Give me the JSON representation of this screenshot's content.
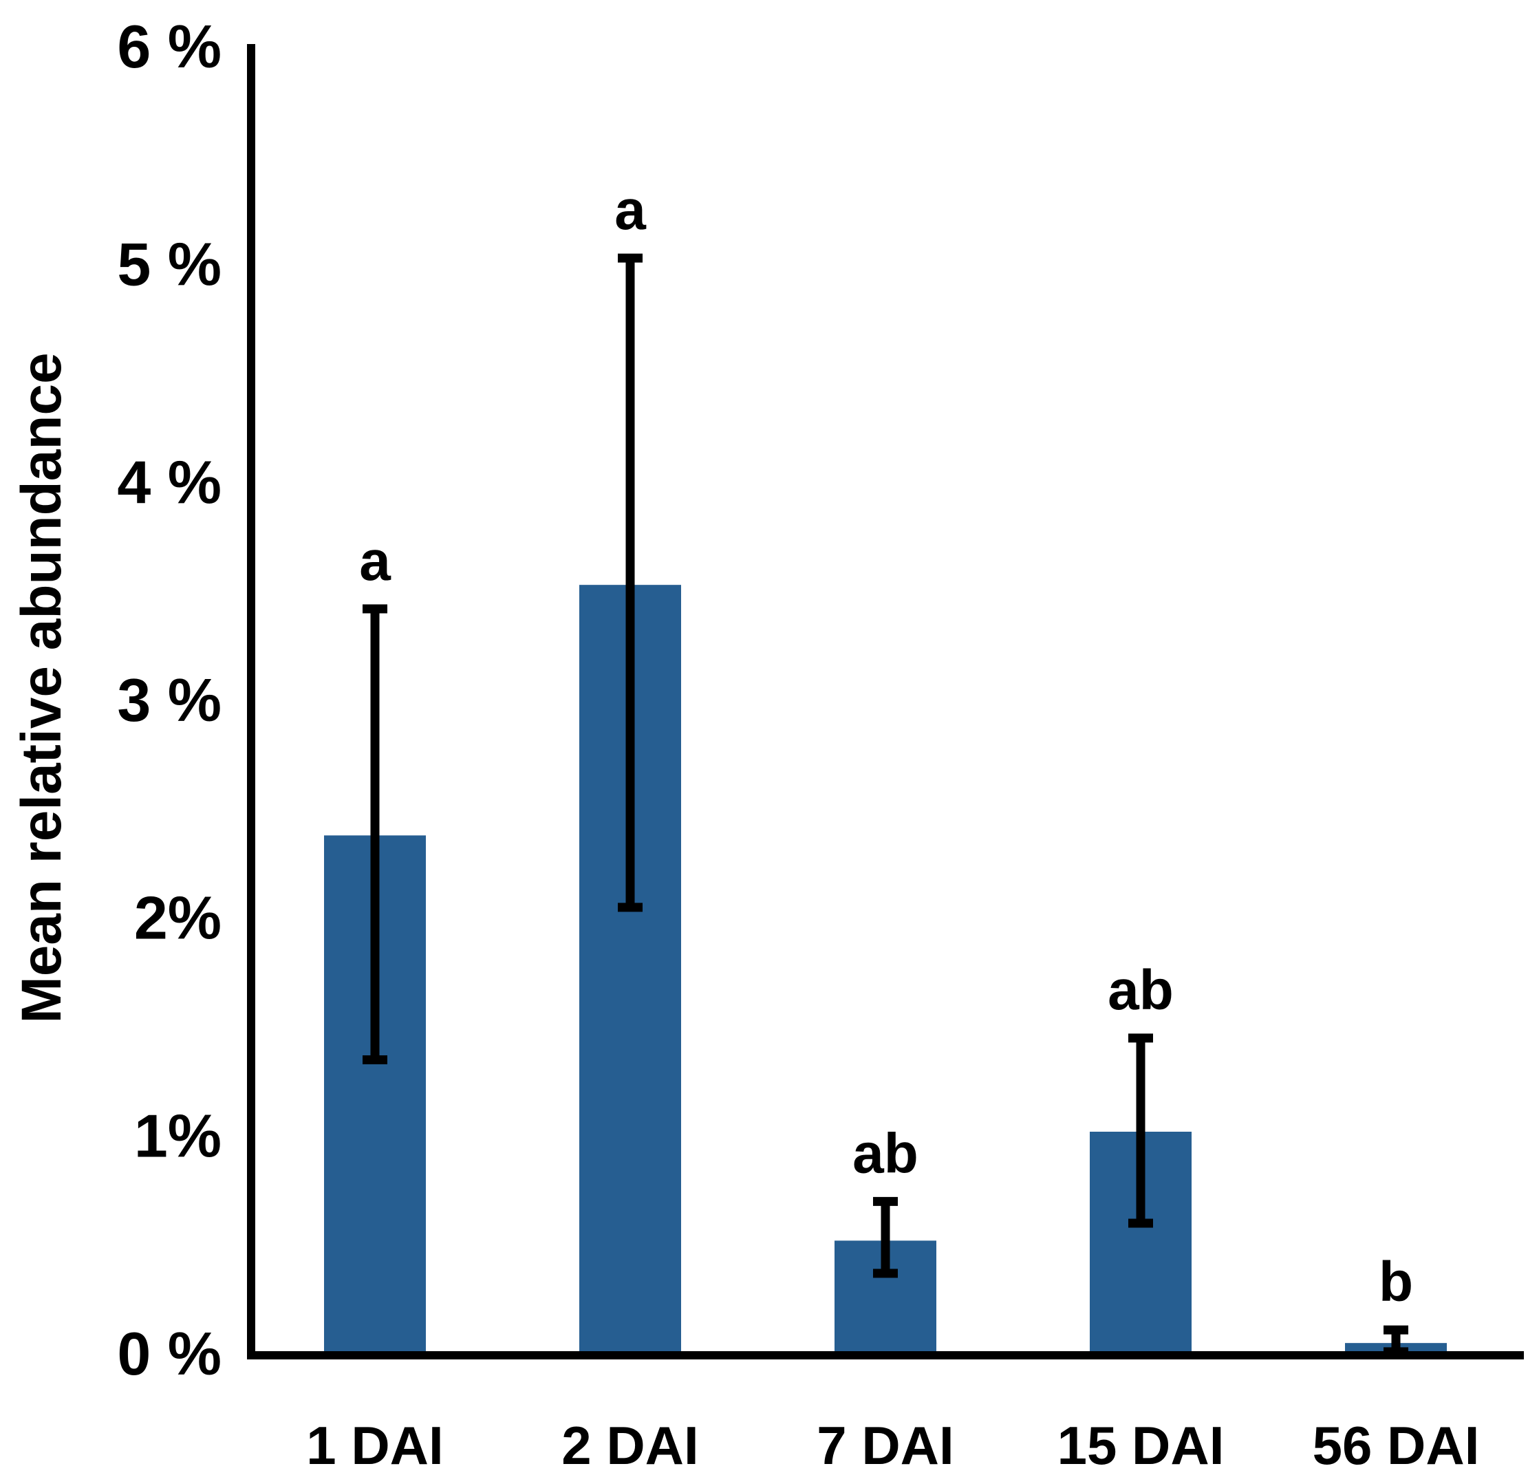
{
  "chart_data": {
    "type": "bar",
    "title": "",
    "xlabel": "",
    "ylabel": "Mean relative  abundance",
    "ylim": [
      0,
      6
    ],
    "yticks": [
      {
        "value": 0,
        "label": "0 %"
      },
      {
        "value": 1,
        "label": "1%"
      },
      {
        "value": 2,
        "label": "2%"
      },
      {
        "value": 3,
        "label": "3 %"
      },
      {
        "value": 4,
        "label": "4 %"
      },
      {
        "value": 5,
        "label": "5 %"
      },
      {
        "value": 6,
        "label": "6 %"
      }
    ],
    "categories": [
      "1 DAI",
      "2 DAI",
      "7 DAI",
      "15 DAI",
      "56 DAI"
    ],
    "values": [
      2.38,
      3.53,
      0.52,
      1.02,
      0.05
    ],
    "error_low": [
      1.35,
      2.05,
      0.37,
      0.6,
      0.01
    ],
    "error_high": [
      3.42,
      5.03,
      0.7,
      1.45,
      0.11
    ],
    "significance": [
      "a",
      "a",
      "ab",
      "ab",
      "b"
    ],
    "grid": false,
    "bar_color": "#265E91",
    "axis_color": "#000000"
  }
}
